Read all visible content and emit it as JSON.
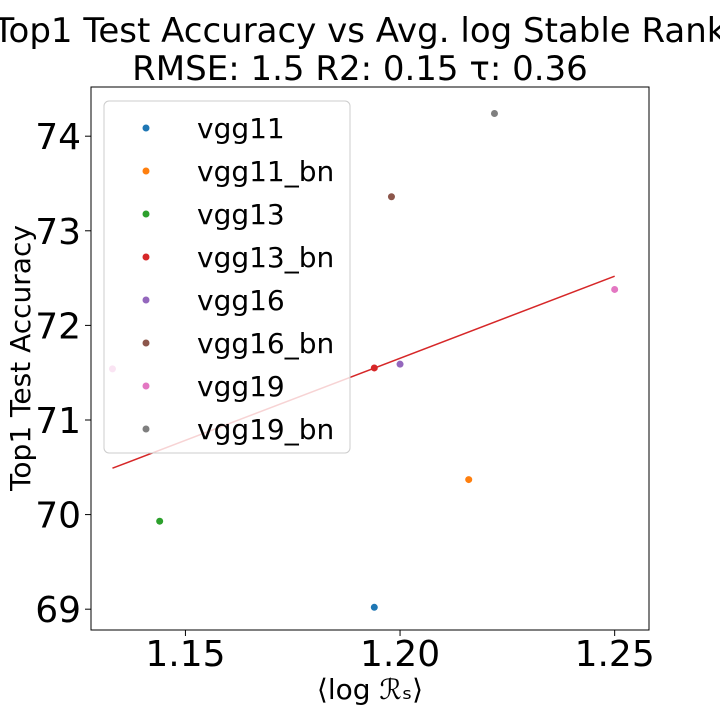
{
  "chart_data": {
    "type": "scatter",
    "title_line1": "Top1 Test Accuracy vs Avg. log Stable Rank",
    "title_line2": "RMSE: 1.5 R2: 0.15 τ: 0.36",
    "xlabel": "⟨log ℛₛ⟩",
    "ylabel": "Top1 Test Accuracy",
    "xlim": [
      1.128,
      1.258
    ],
    "ylim": [
      68.78,
      74.52
    ],
    "xticks": [
      "1.15",
      "1.20",
      "1.25"
    ],
    "yticks": [
      "69",
      "70",
      "71",
      "72",
      "73",
      "74"
    ],
    "grid": false,
    "legend_position": "upper-left",
    "series": [
      {
        "name": "vgg11",
        "color": "#1f77b4",
        "x": 1.194,
        "y": 69.02
      },
      {
        "name": "vgg11_bn",
        "color": "#ff7f0e",
        "x": 1.216,
        "y": 70.37
      },
      {
        "name": "vgg13",
        "color": "#2ca02c",
        "x": 1.144,
        "y": 69.93
      },
      {
        "name": "vgg13_bn",
        "color": "#d62728",
        "x": 1.194,
        "y": 71.55
      },
      {
        "name": "vgg16",
        "color": "#9467bd",
        "x": 1.2,
        "y": 71.59
      },
      {
        "name": "vgg16_bn",
        "color": "#8c564b",
        "x": 1.198,
        "y": 73.36
      },
      {
        "name": "vgg19",
        "color": "#e377c2",
        "x": 1.25,
        "y": 72.38
      },
      {
        "name": "vgg19_bn",
        "color": "#7f7f7f",
        "x": 1.222,
        "y": 74.24
      }
    ],
    "extra_points": [
      {
        "color": "#e377c2",
        "x": 1.133,
        "y": 71.54
      }
    ],
    "fit_line": {
      "color": "#d62728",
      "x": [
        1.133,
        1.25
      ],
      "y": [
        70.49,
        72.52
      ]
    }
  }
}
